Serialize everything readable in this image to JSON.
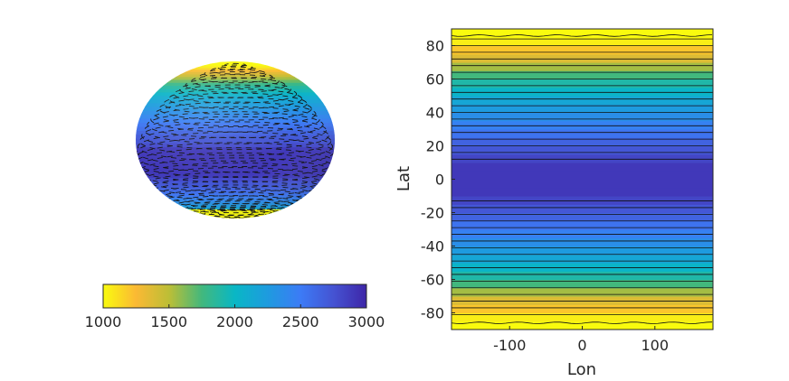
{
  "chart_data": [
    {
      "type": "surface",
      "view": "3d-globe-projection",
      "shading": "latitude-dependent field; high near equator, low near poles",
      "contours": "dashed black"
    },
    {
      "type": "heatmap",
      "xlabel": "Lon",
      "ylabel": "Lat",
      "xlim": [
        -180,
        180
      ],
      "ylim": [
        -90,
        90
      ],
      "xticks": [
        -100,
        0,
        100
      ],
      "yticks": [
        80,
        60,
        40,
        20,
        0,
        -20,
        -40,
        -60,
        -80
      ],
      "grid": false,
      "band_step_deg": 5,
      "contour_lats": [
        86,
        84,
        80,
        76,
        72,
        68,
        64,
        60,
        56,
        52,
        48,
        44,
        40,
        36,
        32,
        28,
        24,
        20,
        16,
        12,
        -13,
        -17,
        -21,
        -25,
        -29,
        -33,
        -37,
        -41,
        -45,
        -49,
        -53,
        -57,
        -61,
        -65,
        -69,
        -73,
        -77,
        -81,
        -86
      ],
      "profile": {
        "lat": [
          0,
          10,
          15,
          20,
          25,
          30,
          35,
          40,
          45,
          50,
          55,
          60,
          65,
          70,
          75,
          80,
          85,
          90
        ],
        "value": [
          2900,
          2900,
          2750,
          2700,
          2600,
          2500,
          2400,
          2300,
          2200,
          2100,
          1950,
          1850,
          1650,
          1450,
          1300,
          1100,
          1000,
          1000
        ]
      }
    },
    {
      "type": "colorbar",
      "orientation": "horizontal",
      "range": [
        1000,
        3000
      ],
      "ticks": [
        1000,
        1500,
        2000,
        2500,
        3000
      ],
      "colormap": "parula-reversed",
      "colors": [
        "#f9fb0e",
        "#fbb934",
        "#bcbe36",
        "#42b87d",
        "#09b7c5",
        "#1e9bdf",
        "#3c7bf6",
        "#4553d2",
        "#3e26a8"
      ]
    }
  ]
}
